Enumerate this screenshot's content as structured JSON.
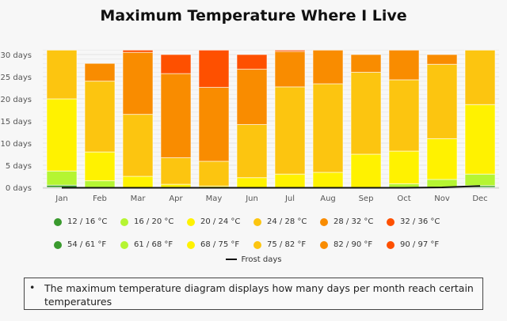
{
  "title": "Maximum Temperature Where I Live",
  "chart_data": {
    "type": "bar",
    "stacked": true,
    "title": "Maximum Temperature Where I Live",
    "xlabel": "",
    "ylabel": "",
    "ylim": [
      0,
      31
    ],
    "yticks": [
      "0 days",
      "5 days",
      "10 days",
      "15 days",
      "20 days",
      "25 days",
      "30 days"
    ],
    "ytick_values": [
      0,
      5,
      10,
      15,
      20,
      25,
      30
    ],
    "grid": true,
    "categories": [
      "Jan",
      "Feb",
      "Mar",
      "Apr",
      "May",
      "Jun",
      "Jul",
      "Aug",
      "Sep",
      "Oct",
      "Nov",
      "Dec"
    ],
    "series": [
      {
        "name": "12 / 16 °C",
        "name_f": "54 / 61 °F",
        "color": "#3a9a2e",
        "values": [
          0.5,
          0,
          0,
          0,
          0,
          0,
          0,
          0,
          0,
          0,
          0,
          0.4
        ]
      },
      {
        "name": "16 / 20 °C",
        "name_f": "61 / 68 °F",
        "color": "#b5f532",
        "values": [
          3.2,
          1.5,
          0,
          0,
          0,
          0,
          0,
          0,
          0,
          0.8,
          1.8,
          2.6
        ]
      },
      {
        "name": "20 / 24 °C",
        "name_f": "68 / 75 °F",
        "color": "#fff200",
        "values": [
          16.3,
          6.5,
          2.5,
          0.7,
          0.3,
          2.2,
          3,
          3.4,
          7.5,
          7.4,
          9.2,
          15.7
        ]
      },
      {
        "name": "24 / 28 °C",
        "name_f": "75 / 82 °F",
        "color": "#fcc510",
        "values": [
          11,
          16,
          14,
          6,
          5.6,
          12,
          19.7,
          20,
          18.5,
          16.1,
          16.8,
          12.3
        ]
      },
      {
        "name": "28 / 32 °C",
        "name_f": "82 / 90 °F",
        "color": "#f98c00",
        "values": [
          0,
          4,
          14,
          19,
          16.7,
          12.5,
          8,
          7.6,
          4,
          6.7,
          2.2,
          0
        ]
      },
      {
        "name": "32 / 36 °C",
        "name_f": "90 / 97 °F",
        "color": "#fe5000",
        "values": [
          0,
          0,
          0.5,
          4.3,
          8.4,
          3.3,
          0.3,
          0,
          0,
          0,
          0,
          0
        ]
      }
    ],
    "line_series": [
      {
        "name": "Frost days",
        "color": "#111111",
        "values": [
          0,
          0,
          0,
          0,
          0,
          0,
          0,
          0,
          0,
          0,
          0.1,
          0.4
        ]
      }
    ],
    "legend": "bottom"
  },
  "note": {
    "bullet": "•",
    "text": "The maximum temperature diagram displays how many days per month reach certain temperatures"
  }
}
